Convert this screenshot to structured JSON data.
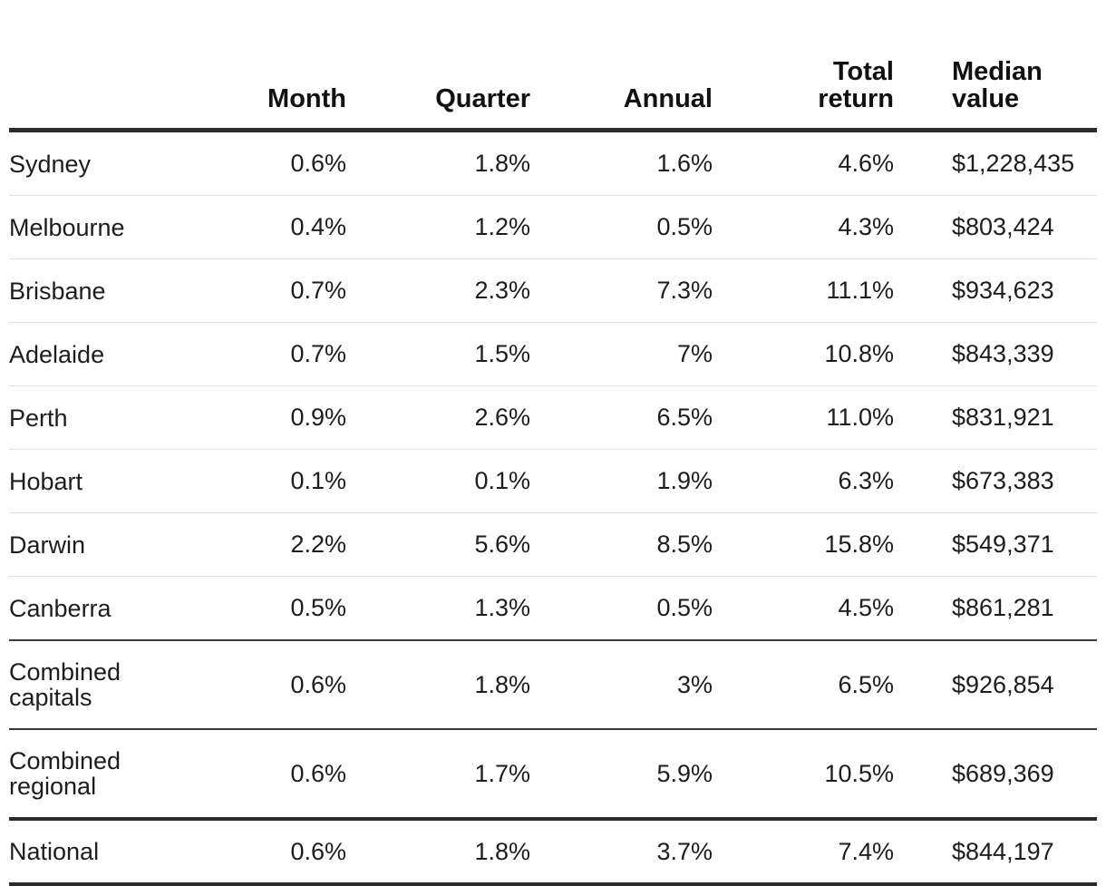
{
  "headers": {
    "name": "",
    "month": "Month",
    "quarter": "Quarter",
    "annual": "Annual",
    "total_line1": "Total",
    "total_line2": "return",
    "median_line1": "Median",
    "median_line2": "value"
  },
  "rows": [
    {
      "name": "Sydney",
      "month": "0.6%",
      "quarter": "1.8%",
      "annual": "1.6%",
      "total": "4.6%",
      "median": "$1,228,435"
    },
    {
      "name": "Melbourne",
      "month": "0.4%",
      "quarter": "1.2%",
      "annual": "0.5%",
      "total": "4.3%",
      "median": "$803,424"
    },
    {
      "name": "Brisbane",
      "month": "0.7%",
      "quarter": "2.3%",
      "annual": "7.3%",
      "total": "11.1%",
      "median": "$934,623"
    },
    {
      "name": "Adelaide",
      "month": "0.7%",
      "quarter": "1.5%",
      "annual": "7%",
      "total": "10.8%",
      "median": "$843,339"
    },
    {
      "name": "Perth",
      "month": "0.9%",
      "quarter": "2.6%",
      "annual": "6.5%",
      "total": "11.0%",
      "median": "$831,921"
    },
    {
      "name": "Hobart",
      "month": "0.1%",
      "quarter": "0.1%",
      "annual": "1.9%",
      "total": "6.3%",
      "median": "$673,383"
    },
    {
      "name": "Darwin",
      "month": "2.2%",
      "quarter": "5.6%",
      "annual": "8.5%",
      "total": "15.8%",
      "median": "$549,371"
    },
    {
      "name": "Canberra",
      "month": "0.5%",
      "quarter": "1.3%",
      "annual": "0.5%",
      "total": "4.5%",
      "median": "$861,281"
    },
    {
      "name_line1": "Combined",
      "name_line2": "capitals",
      "month": "0.6%",
      "quarter": "1.8%",
      "annual": "3%",
      "total": "6.5%",
      "median": "$926,854"
    },
    {
      "name_line1": "Combined",
      "name_line2": "regional",
      "month": "0.6%",
      "quarter": "1.7%",
      "annual": "5.9%",
      "total": "10.5%",
      "median": "$689,369"
    },
    {
      "name": "National",
      "month": "0.6%",
      "quarter": "1.8%",
      "annual": "3.7%",
      "total": "7.4%",
      "median": "$844,197"
    }
  ]
}
